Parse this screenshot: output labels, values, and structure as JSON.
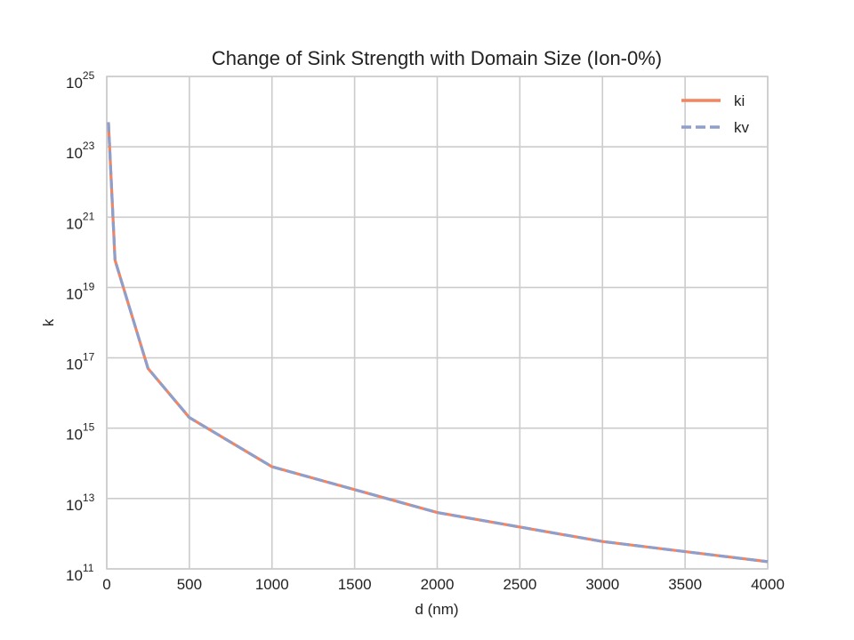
{
  "chart_data": {
    "type": "line",
    "title": "Change of Sink Strength with Domain Size (Ion-0%)",
    "xlabel": "d (nm)",
    "ylabel": "k",
    "x_ticks": [
      "0",
      "500",
      "1000",
      "1500",
      "2000",
      "2500",
      "3000",
      "3500",
      "4000"
    ],
    "y_ticks": [
      {
        "base": "10",
        "exp": "11"
      },
      {
        "base": "10",
        "exp": "13"
      },
      {
        "base": "10",
        "exp": "15"
      },
      {
        "base": "10",
        "exp": "17"
      },
      {
        "base": "10",
        "exp": "19"
      },
      {
        "base": "10",
        "exp": "21"
      },
      {
        "base": "10",
        "exp": "23"
      },
      {
        "base": "10",
        "exp": "25"
      }
    ],
    "xlim": [
      0,
      4000
    ],
    "ylim": [
      100000000000.0,
      1e+25
    ],
    "yscale": "log",
    "grid": true,
    "legend_position": "top-right",
    "x": [
      10,
      50,
      250,
      500,
      1000,
      2000,
      3000,
      4000
    ],
    "series": [
      {
        "name": "ki",
        "style": "solid",
        "color": "#f4845f",
        "values": [
          5e+23,
          6e+19,
          5e+16,
          2000000000000000.0,
          80000000000000.0,
          4000000000000.0,
          600000000000.0,
          160000000000.0
        ]
      },
      {
        "name": "kv",
        "style": "dashed",
        "color": "#8e9fcb",
        "values": [
          5e+23,
          6e+19,
          5e+16,
          2000000000000000.0,
          80000000000000.0,
          4000000000000.0,
          600000000000.0,
          160000000000.0
        ]
      }
    ]
  }
}
